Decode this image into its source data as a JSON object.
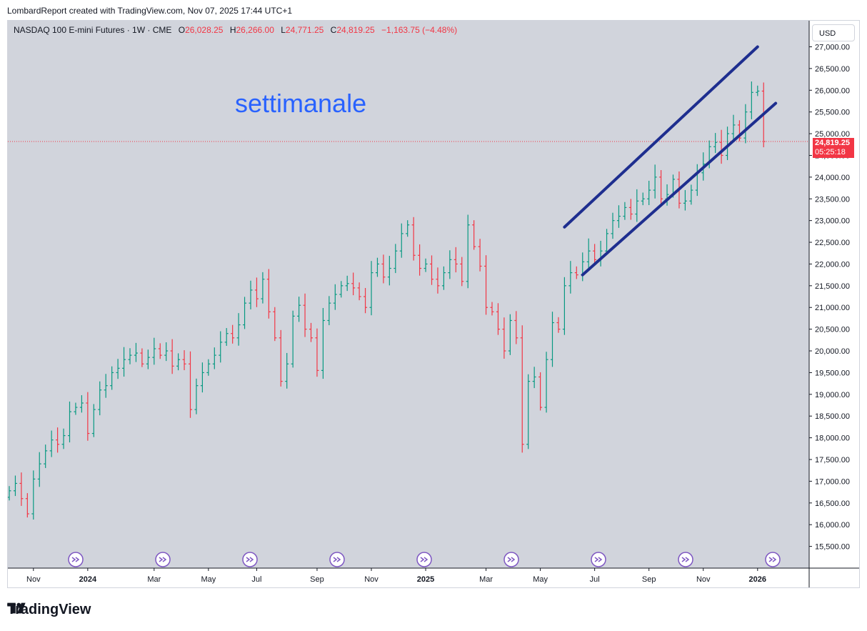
{
  "header": {
    "attribution": "LombardReport created with TradingView.com, Nov 07, 2025 17:44 UTC+1"
  },
  "legend": {
    "symbol": "NASDAQ 100 E-mini Futures · 1W · CME",
    "open_label": "O",
    "open": "26,028.25",
    "high_label": "H",
    "high": "26,266.00",
    "low_label": "L",
    "low": "24,771.25",
    "close_label": "C",
    "close": "24,819.25",
    "change": "−1,163.75 (−4.48%)"
  },
  "currency_button": "USD",
  "annotation": "settimanale",
  "last_price": {
    "price": "24,819.25",
    "countdown": "05:25:18",
    "value": 24819.25
  },
  "colors": {
    "up": "#089981",
    "down": "#f23645",
    "channel": "#1e2e8f",
    "annotation": "#2962ff",
    "plot_bg": "#d1d4dc"
  },
  "brand": {
    "name": "TradingView",
    "icon": "tradingview-logo-icon"
  },
  "chart_data": {
    "type": "ohlc",
    "title": "NASDAQ 100 E-mini Futures · 1W · CME",
    "y_ticks": [
      "15,500.00",
      "16,000.00",
      "16,500.00",
      "17,000.00",
      "17,500.00",
      "18,000.00",
      "18,500.00",
      "19,000.00",
      "19,500.00",
      "20,000.00",
      "20,500.00",
      "21,000.00",
      "21,500.00",
      "22,000.00",
      "22,500.00",
      "23,000.00",
      "23,500.00",
      "24,000.00",
      "24,500.00",
      "25,000.00",
      "25,500.00",
      "26,000.00",
      "26,500.00",
      "27,000.00"
    ],
    "y_tick_values": [
      15500,
      16000,
      16500,
      17000,
      17500,
      18000,
      18500,
      19000,
      19500,
      20000,
      20500,
      21000,
      21500,
      22000,
      22500,
      23000,
      23500,
      24000,
      24500,
      25000,
      25500,
      26000,
      26500,
      27000
    ],
    "ylim": [
      15000,
      27600
    ],
    "x_ticks": [
      "Nov",
      "2024",
      "Mar",
      "May",
      "Jul",
      "Sep",
      "Nov",
      "2025",
      "Mar",
      "May",
      "Jul",
      "Sep",
      "Nov",
      "2026"
    ],
    "x_tick_index": [
      4,
      13,
      24,
      33,
      41,
      51,
      60,
      69,
      79,
      88,
      97,
      106,
      115,
      124
    ],
    "bold_x_ticks": [
      "2024",
      "2025",
      "2026"
    ],
    "closes": [
      16780,
      16950,
      16600,
      16250,
      17050,
      17400,
      17700,
      17950,
      17850,
      18050,
      18600,
      18700,
      18800,
      18100,
      18650,
      19100,
      19200,
      19500,
      19600,
      19800,
      19900,
      19950,
      19700,
      19850,
      20050,
      19900,
      20000,
      19650,
      19800,
      19700,
      18650,
      19200,
      19500,
      19700,
      19900,
      20200,
      20400,
      20300,
      20600,
      21100,
      21400,
      21200,
      21650,
      20900,
      20300,
      19300,
      19700,
      20800,
      21050,
      20500,
      20300,
      19550,
      20700,
      21100,
      21300,
      21500,
      21550,
      21450,
      21250,
      21000,
      21800,
      22000,
      21700,
      21900,
      22300,
      22700,
      22900,
      22200,
      21900,
      22000,
      21650,
      21500,
      21800,
      22100,
      22000,
      21600,
      22900,
      22400,
      21950,
      21000,
      20900,
      20500,
      20000,
      20700,
      20300,
      17850,
      19300,
      19400,
      18700,
      19800,
      20650,
      20500,
      21500,
      21800,
      21750,
      22050,
      22300,
      22100,
      22300,
      22700,
      23000,
      23100,
      23300,
      23150,
      23450,
      23500,
      23700,
      24000,
      23500,
      23600,
      23950,
      23400,
      23450,
      23700,
      24100,
      24300,
      24700,
      24800,
      24500,
      25000,
      25200,
      24900,
      25500,
      25950,
      25980,
      24819.25
    ],
    "channel_upper": {
      "from_index": 92,
      "from": 22850,
      "to_index": 124,
      "to": 27000
    },
    "channel_lower": {
      "from_index": 95,
      "from": 21750,
      "to_index": 127,
      "to": 25700
    },
    "event_markers_count": 9
  }
}
